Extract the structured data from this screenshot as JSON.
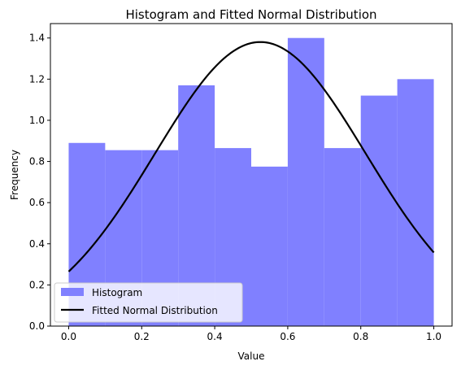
{
  "chart_data": {
    "type": "bar",
    "title": "Histogram and Fitted Normal Distribution",
    "xlabel": "Value",
    "ylabel": "Frequency",
    "xlim": [
      -0.05,
      1.05
    ],
    "ylim": [
      0,
      1.47
    ],
    "x_ticks": [
      0.0,
      0.2,
      0.4,
      0.6,
      0.8,
      1.0
    ],
    "x_tick_labels": [
      "0.0",
      "0.2",
      "0.4",
      "0.6",
      "0.8",
      "1.0"
    ],
    "y_ticks": [
      0.0,
      0.2,
      0.4,
      0.6,
      0.8,
      1.0,
      1.2,
      1.4
    ],
    "y_tick_labels": [
      "0.0",
      "0.2",
      "0.4",
      "0.6",
      "0.8",
      "1.0",
      "1.2",
      "1.4"
    ],
    "histogram": {
      "name": "Histogram",
      "color": "#8080ff",
      "bin_edges": [
        0.0,
        0.1,
        0.2,
        0.3,
        0.4,
        0.5,
        0.6,
        0.7,
        0.8,
        0.9,
        1.0
      ],
      "values": [
        0.89,
        0.855,
        0.855,
        1.17,
        0.865,
        0.775,
        1.4,
        0.865,
        1.12,
        1.2
      ]
    },
    "fitted_curve": {
      "name": "Fitted Normal Distribution",
      "color": "#000000",
      "mean": 0.525,
      "std": 0.289,
      "x_range": [
        0.0,
        1.0
      ]
    },
    "legend": {
      "placement": "lower-left",
      "entries": [
        "Histogram",
        "Fitted Normal Distribution"
      ]
    },
    "grid": false
  }
}
